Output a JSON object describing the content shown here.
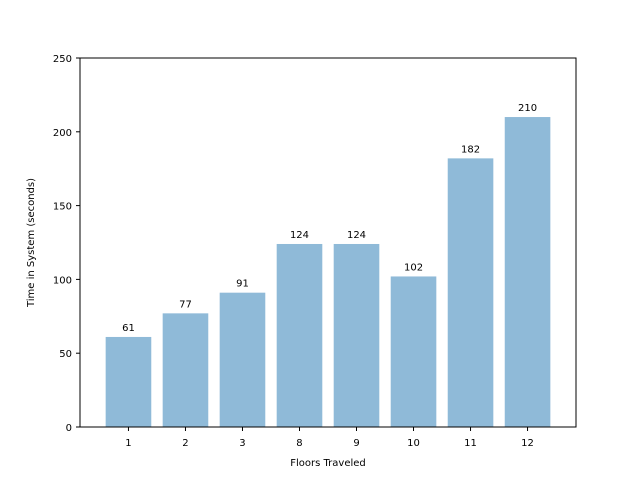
{
  "chart_data": {
    "type": "bar",
    "title": "",
    "xlabel": "Floors Traveled",
    "ylabel": "Time in System (seconds)",
    "categories": [
      "1",
      "2",
      "3",
      "8",
      "9",
      "10",
      "11",
      "12"
    ],
    "values": [
      61,
      77,
      91,
      124,
      124,
      102,
      182,
      210
    ],
    "data_labels": [
      "61",
      "77",
      "91",
      "124",
      "124",
      "102",
      "182",
      "210"
    ],
    "ylim": [
      0,
      250
    ],
    "yticks": [
      0,
      50,
      100,
      150,
      200,
      250
    ],
    "ytick_labels": [
      "0",
      "50",
      "100",
      "150",
      "200",
      "250"
    ],
    "grid": false,
    "legend": "none",
    "bar_color": "#8fbad8"
  }
}
